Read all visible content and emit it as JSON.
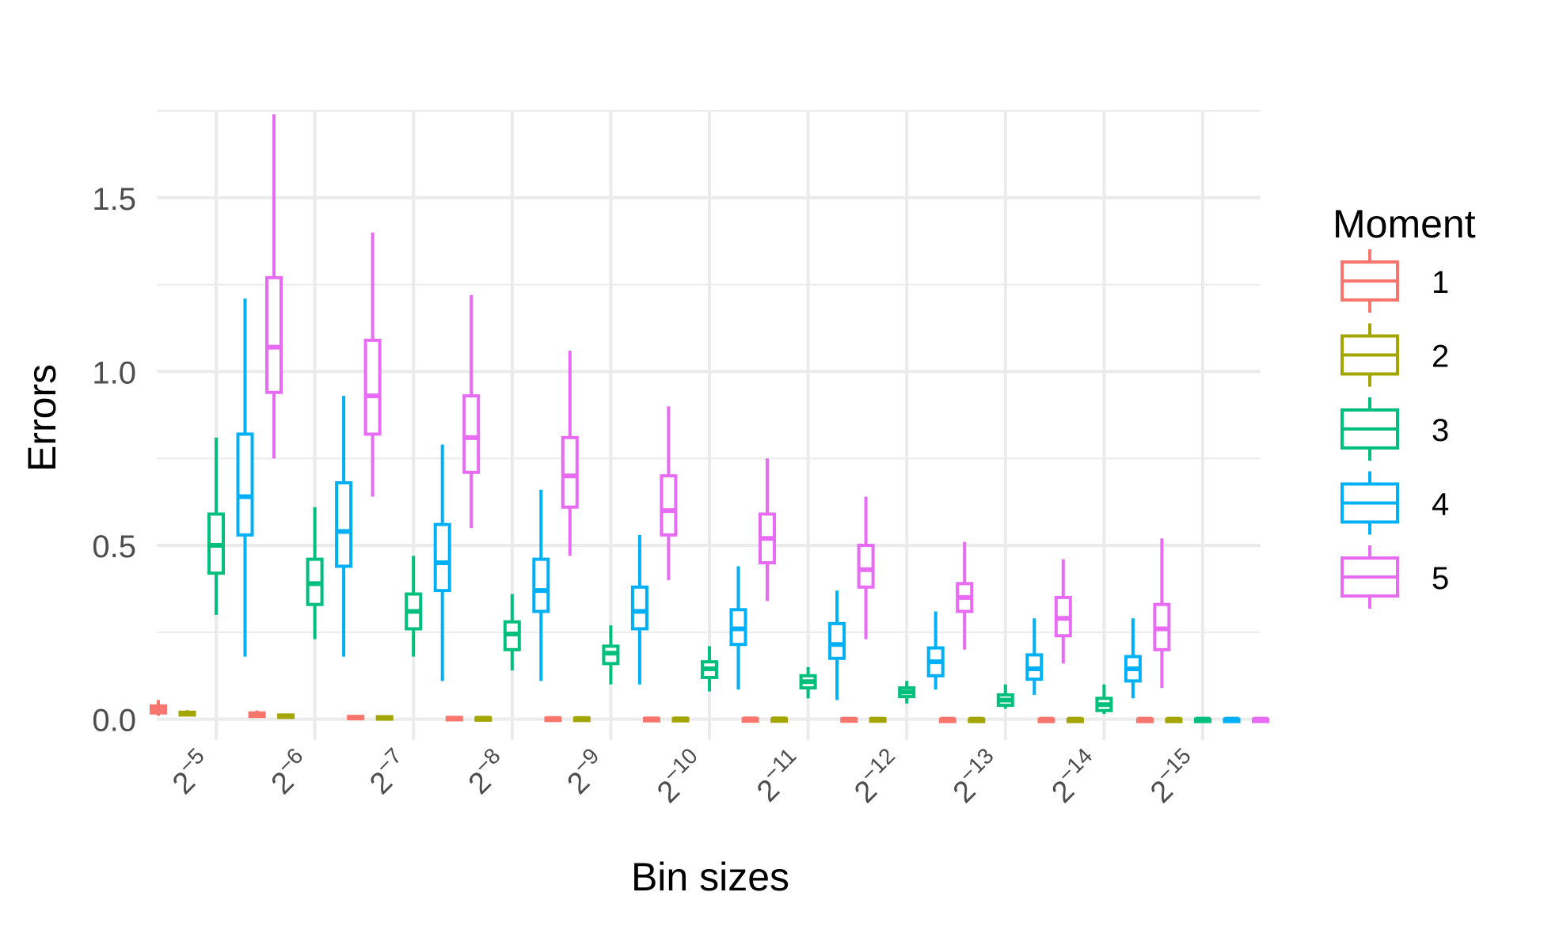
{
  "chart_data": {
    "type": "boxplot",
    "xlabel": "Bin sizes",
    "ylabel": "Errors",
    "ylim": [
      -0.06,
      1.75
    ],
    "yticks": [
      0.0,
      0.5,
      1.0,
      1.5
    ],
    "ytick_labels": [
      "0.0",
      "0.5",
      "1.0",
      "1.5"
    ],
    "grid": true,
    "legend": {
      "title": "Moment",
      "position": "right"
    },
    "categories": [
      {
        "base": "2",
        "exp": "−5"
      },
      {
        "base": "2",
        "exp": "−6"
      },
      {
        "base": "2",
        "exp": "−7"
      },
      {
        "base": "2",
        "exp": "−8"
      },
      {
        "base": "2",
        "exp": "−9"
      },
      {
        "base": "2",
        "exp": "−10"
      },
      {
        "base": "2",
        "exp": "−11"
      },
      {
        "base": "2",
        "exp": "−12"
      },
      {
        "base": "2",
        "exp": "−13"
      },
      {
        "base": "2",
        "exp": "−14"
      },
      {
        "base": "2",
        "exp": "−15"
      }
    ],
    "series": [
      {
        "name": "1",
        "color": "#F8766D",
        "boxes": [
          {
            "min": 0.01,
            "q1": 0.018,
            "median": 0.028,
            "q3": 0.038,
            "max": 0.055
          },
          {
            "min": 0.005,
            "q1": 0.008,
            "median": 0.012,
            "q3": 0.018,
            "max": 0.025
          },
          {
            "min": 0.002,
            "q1": 0.003,
            "median": 0.005,
            "q3": 0.008,
            "max": 0.011
          },
          {
            "min": 0.001,
            "q1": 0.002,
            "median": 0.003,
            "q3": 0.005,
            "max": 0.007
          },
          {
            "min": 0.0,
            "q1": 0.001,
            "median": 0.002,
            "q3": 0.003,
            "max": 0.004
          },
          {
            "min": 0.0,
            "q1": 0.0,
            "median": 0.001,
            "q3": 0.002,
            "max": 0.003
          },
          {
            "min": 0.0,
            "q1": 0.0,
            "median": 0.001,
            "q3": 0.001,
            "max": 0.002
          },
          {
            "min": 0.0,
            "q1": 0.0,
            "median": 0.0,
            "q3": 0.001,
            "max": 0.001
          },
          {
            "min": 0.0,
            "q1": 0.0,
            "median": 0.0,
            "q3": 0.0,
            "max": 0.001
          },
          {
            "min": 0.0,
            "q1": 0.0,
            "median": 0.0,
            "q3": 0.0,
            "max": 0.0
          },
          {
            "min": 0.0,
            "q1": 0.0,
            "median": 0.0,
            "q3": 0.0,
            "max": 0.0
          }
        ]
      },
      {
        "name": "2",
        "color": "#A3A500",
        "boxes": [
          {
            "min": 0.008,
            "q1": 0.012,
            "median": 0.016,
            "q3": 0.02,
            "max": 0.026
          },
          {
            "min": 0.004,
            "q1": 0.006,
            "median": 0.009,
            "q3": 0.012,
            "max": 0.016
          },
          {
            "min": 0.002,
            "q1": 0.003,
            "median": 0.005,
            "q3": 0.007,
            "max": 0.009
          },
          {
            "min": 0.001,
            "q1": 0.002,
            "median": 0.003,
            "q3": 0.004,
            "max": 0.006
          },
          {
            "min": 0.0,
            "q1": 0.001,
            "median": 0.002,
            "q3": 0.003,
            "max": 0.004
          },
          {
            "min": 0.0,
            "q1": 0.0,
            "median": 0.001,
            "q3": 0.002,
            "max": 0.003
          },
          {
            "min": 0.0,
            "q1": 0.0,
            "median": 0.001,
            "q3": 0.001,
            "max": 0.002
          },
          {
            "min": 0.0,
            "q1": 0.0,
            "median": 0.0,
            "q3": 0.001,
            "max": 0.001
          },
          {
            "min": 0.0,
            "q1": 0.0,
            "median": 0.0,
            "q3": 0.0,
            "max": 0.001
          },
          {
            "min": 0.0,
            "q1": 0.0,
            "median": 0.0,
            "q3": 0.0,
            "max": 0.0
          },
          {
            "min": 0.0,
            "q1": 0.0,
            "median": 0.0,
            "q3": 0.0,
            "max": 0.0
          }
        ]
      },
      {
        "name": "3",
        "color": "#00BF7D",
        "boxes": [
          {
            "min": 0.3,
            "q1": 0.42,
            "median": 0.5,
            "q3": 0.59,
            "max": 0.81
          },
          {
            "min": 0.23,
            "q1": 0.33,
            "median": 0.39,
            "q3": 0.46,
            "max": 0.61
          },
          {
            "min": 0.18,
            "q1": 0.26,
            "median": 0.31,
            "q3": 0.36,
            "max": 0.47
          },
          {
            "min": 0.14,
            "q1": 0.2,
            "median": 0.245,
            "q3": 0.28,
            "max": 0.36
          },
          {
            "min": 0.1,
            "q1": 0.16,
            "median": 0.19,
            "q3": 0.21,
            "max": 0.27
          },
          {
            "min": 0.08,
            "q1": 0.12,
            "median": 0.145,
            "q3": 0.165,
            "max": 0.21
          },
          {
            "min": 0.06,
            "q1": 0.09,
            "median": 0.108,
            "q3": 0.125,
            "max": 0.15
          },
          {
            "min": 0.045,
            "q1": 0.065,
            "median": 0.078,
            "q3": 0.09,
            "max": 0.11
          },
          {
            "min": 0.03,
            "q1": 0.04,
            "median": 0.055,
            "q3": 0.07,
            "max": 0.1
          },
          {
            "min": 0.015,
            "q1": 0.025,
            "median": 0.042,
            "q3": 0.06,
            "max": 0.1
          },
          {
            "min": 0.0,
            "q1": 0.0,
            "median": 0.0,
            "q3": 0.0,
            "max": 0.0
          }
        ]
      },
      {
        "name": "4",
        "color": "#00B0F6",
        "boxes": [
          {
            "min": 0.18,
            "q1": 0.53,
            "median": 0.64,
            "q3": 0.82,
            "max": 1.21
          },
          {
            "min": 0.18,
            "q1": 0.44,
            "median": 0.54,
            "q3": 0.68,
            "max": 0.93
          },
          {
            "min": 0.11,
            "q1": 0.37,
            "median": 0.45,
            "q3": 0.56,
            "max": 0.79
          },
          {
            "min": 0.11,
            "q1": 0.31,
            "median": 0.37,
            "q3": 0.46,
            "max": 0.66
          },
          {
            "min": 0.1,
            "q1": 0.26,
            "median": 0.31,
            "q3": 0.38,
            "max": 0.53
          },
          {
            "min": 0.085,
            "q1": 0.215,
            "median": 0.26,
            "q3": 0.315,
            "max": 0.44
          },
          {
            "min": 0.055,
            "q1": 0.175,
            "median": 0.215,
            "q3": 0.275,
            "max": 0.37
          },
          {
            "min": 0.085,
            "q1": 0.125,
            "median": 0.165,
            "q3": 0.205,
            "max": 0.31
          },
          {
            "min": 0.07,
            "q1": 0.115,
            "median": 0.145,
            "q3": 0.185,
            "max": 0.29
          },
          {
            "min": 0.06,
            "q1": 0.11,
            "median": 0.145,
            "q3": 0.18,
            "max": 0.29
          },
          {
            "min": 0.0,
            "q1": 0.0,
            "median": 0.0,
            "q3": 0.0,
            "max": 0.0
          }
        ]
      },
      {
        "name": "5",
        "color": "#E76BF3",
        "boxes": [
          {
            "min": 0.75,
            "q1": 0.94,
            "median": 1.07,
            "q3": 1.27,
            "max": 1.74
          },
          {
            "min": 0.64,
            "q1": 0.82,
            "median": 0.93,
            "q3": 1.09,
            "max": 1.4
          },
          {
            "min": 0.55,
            "q1": 0.71,
            "median": 0.81,
            "q3": 0.93,
            "max": 1.22
          },
          {
            "min": 0.47,
            "q1": 0.61,
            "median": 0.7,
            "q3": 0.81,
            "max": 1.06
          },
          {
            "min": 0.4,
            "q1": 0.53,
            "median": 0.6,
            "q3": 0.7,
            "max": 0.9
          },
          {
            "min": 0.34,
            "q1": 0.45,
            "median": 0.52,
            "q3": 0.59,
            "max": 0.75
          },
          {
            "min": 0.23,
            "q1": 0.38,
            "median": 0.43,
            "q3": 0.5,
            "max": 0.64
          },
          {
            "min": 0.2,
            "q1": 0.31,
            "median": 0.35,
            "q3": 0.39,
            "max": 0.51
          },
          {
            "min": 0.16,
            "q1": 0.24,
            "median": 0.29,
            "q3": 0.35,
            "max": 0.46
          },
          {
            "min": 0.09,
            "q1": 0.2,
            "median": 0.26,
            "q3": 0.33,
            "max": 0.52
          },
          {
            "min": 0.0,
            "q1": 0.0,
            "median": 0.0,
            "q3": 0.0,
            "max": 0.0
          }
        ]
      }
    ]
  }
}
